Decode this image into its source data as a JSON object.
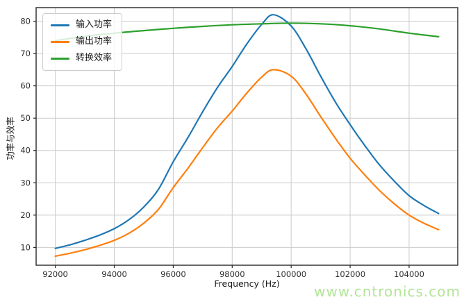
{
  "watermark": {
    "text": "www.cntronics.com",
    "color": "#b2e598"
  },
  "chart_data": {
    "type": "line",
    "title": "",
    "xlabel": "Frequency (Hz)",
    "ylabel": "功率与效率",
    "xlim": [
      91350,
      105650
    ],
    "ylim": [
      4.5,
      84.2
    ],
    "xticks": [
      92000,
      94000,
      96000,
      98000,
      100000,
      102000,
      104000
    ],
    "yticks": [
      10,
      20,
      30,
      40,
      50,
      60,
      70,
      80
    ],
    "grid": true,
    "legend_position": "upper-left",
    "series": [
      {
        "name": "输入功率",
        "color": "#1f77b4",
        "x": [
          92000,
          92500,
          93000,
          93500,
          94000,
          94500,
          95000,
          95500,
          96000,
          96500,
          97000,
          97500,
          98000,
          98500,
          99000,
          99400,
          100000,
          100500,
          101000,
          101500,
          102000,
          102500,
          103000,
          103500,
          104000,
          104500,
          105000
        ],
        "values": [
          9.7,
          10.8,
          12.2,
          13.8,
          15.8,
          18.6,
          22.5,
          28,
          36.5,
          44,
          52,
          59.5,
          66,
          73,
          79,
          82,
          78.5,
          71.5,
          63,
          55,
          48,
          41.5,
          35.5,
          30.5,
          26,
          23,
          20.5
        ]
      },
      {
        "name": "输出功率",
        "color": "#ff7f0e",
        "x": [
          92000,
          92500,
          93000,
          93500,
          94000,
          94500,
          95000,
          95500,
          96000,
          96500,
          97000,
          97500,
          98000,
          98500,
          99000,
          99400,
          100000,
          100500,
          101000,
          101500,
          102000,
          102500,
          103000,
          103500,
          104000,
          104500,
          105000
        ],
        "values": [
          7.3,
          8.2,
          9.3,
          10.6,
          12.2,
          14.4,
          17.5,
          21.8,
          28.5,
          34.5,
          40.9,
          47,
          52.2,
          57.8,
          62.7,
          65,
          63,
          57.5,
          50.5,
          43.8,
          37.6,
          32.4,
          27.6,
          23.5,
          20,
          17.5,
          15.5
        ]
      },
      {
        "name": "转换效率",
        "color": "#2ca02c",
        "x": [
          92000,
          93000,
          94000,
          95000,
          96000,
          97000,
          98000,
          99000,
          100000,
          101000,
          102000,
          103000,
          104000,
          105000
        ],
        "values": [
          74,
          75.3,
          76.3,
          77.1,
          77.8,
          78.4,
          78.9,
          79.2,
          79.4,
          79.2,
          78.6,
          77.6,
          76.3,
          75.2
        ]
      }
    ]
  }
}
